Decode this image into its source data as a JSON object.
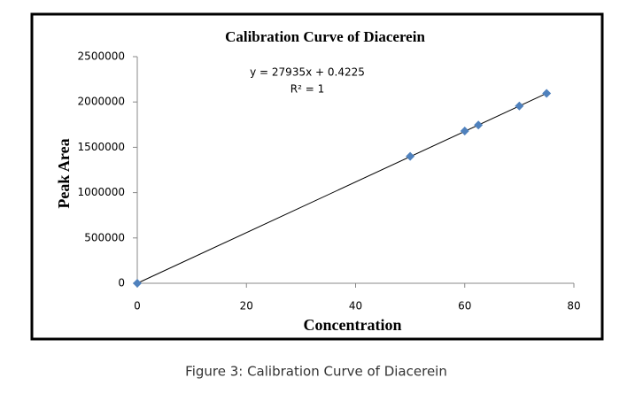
{
  "chart_data": {
    "type": "scatter",
    "title": "Calibration Curve of Diacerein",
    "x_label": "Concentration",
    "y_label": "Peak Area",
    "annotations": [
      "y = 27935x + 0.4225",
      "R² = 1"
    ],
    "series": [
      {
        "name": "Peak Area",
        "color": "#4f81bd",
        "x": [
          0,
          50,
          60,
          62.5,
          70,
          75
        ],
        "values": [
          0,
          1400000,
          1680000,
          1745000,
          1955000,
          2095000
        ]
      }
    ],
    "xlim": [
      0,
      80
    ],
    "xticks": [
      0,
      20,
      40,
      60,
      80
    ],
    "ylim": [
      0,
      2500000
    ],
    "yticks": [
      0,
      500000,
      1000000,
      1500000,
      2000000,
      2500000
    ],
    "trendline": true,
    "grid": false
  },
  "caption": "Figure 3: Calibration Curve of Diacerein"
}
